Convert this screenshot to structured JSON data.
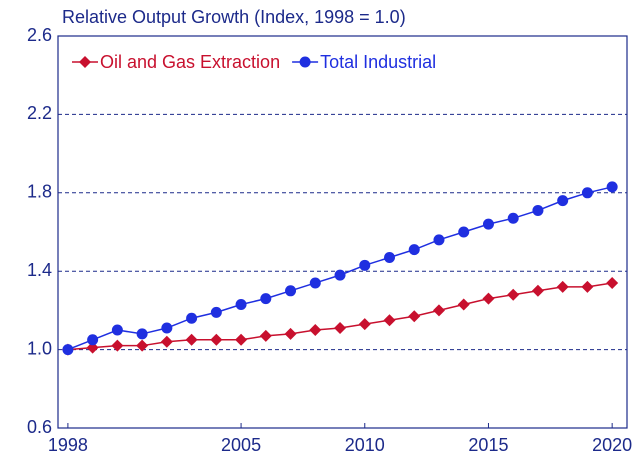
{
  "chart_data": {
    "type": "line",
    "title": "Relative Output Growth (Index, 1998 = 1.0)",
    "x": [
      1998,
      1999,
      2000,
      2001,
      2002,
      2003,
      2004,
      2005,
      2006,
      2007,
      2008,
      2009,
      2010,
      2011,
      2012,
      2013,
      2014,
      2015,
      2016,
      2017,
      2018,
      2019,
      2020
    ],
    "series": [
      {
        "name": "Oil and Gas Extraction",
        "color": "#c8102e",
        "marker": "diamond",
        "values": [
          1.0,
          1.01,
          1.02,
          1.02,
          1.04,
          1.05,
          1.05,
          1.05,
          1.07,
          1.08,
          1.1,
          1.11,
          1.13,
          1.15,
          1.17,
          1.2,
          1.23,
          1.26,
          1.28,
          1.3,
          1.32,
          1.32,
          1.34
        ]
      },
      {
        "name": "Total Industrial",
        "color": "#1f2fe0",
        "marker": "circle",
        "values": [
          1.0,
          1.05,
          1.1,
          1.08,
          1.11,
          1.16,
          1.19,
          1.23,
          1.26,
          1.3,
          1.34,
          1.38,
          1.43,
          1.47,
          1.51,
          1.56,
          1.6,
          1.64,
          1.67,
          1.71,
          1.76,
          1.8,
          1.83
        ]
      }
    ],
    "xlim": [
      1997.6,
      2020.6
    ],
    "xticks": [
      1998,
      2005,
      2010,
      2015,
      2020
    ],
    "ylim": [
      0.6,
      2.6
    ],
    "yticks": [
      0.6,
      {
        "value": 1,
        "label": "1.0"
      },
      1.4,
      1.8,
      2.2,
      2.6
    ],
    "grid": true,
    "legend": "top-left"
  }
}
